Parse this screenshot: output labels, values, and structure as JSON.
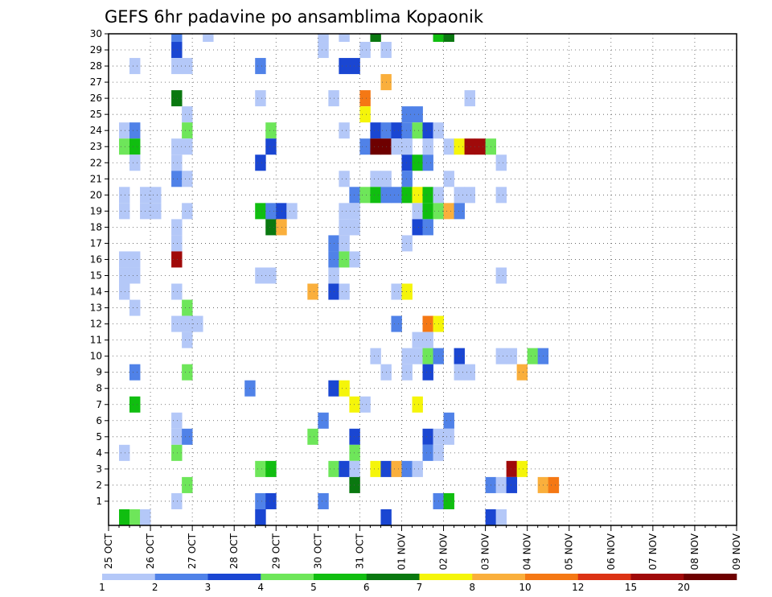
{
  "chart_data": {
    "type": "heatmap",
    "title": "GEFS 6hr padavine po ansamblima Kopaonik",
    "xlabel": "",
    "ylabel": "",
    "y_ticks": [
      1,
      2,
      3,
      4,
      5,
      6,
      7,
      8,
      9,
      10,
      11,
      12,
      13,
      14,
      15,
      16,
      17,
      18,
      19,
      20,
      21,
      22,
      23,
      24,
      25,
      26,
      27,
      28,
      29,
      30
    ],
    "x_ticks": [
      "25 OCT",
      "26 OCT",
      "27 OCT",
      "28 OCT",
      "29 OCT",
      "30 OCT",
      "31 OCT",
      "01 NOV",
      "02 NOV",
      "03 NOV",
      "04 NOV",
      "05 NOV",
      "06 NOV",
      "07 NOV",
      "08 NOV",
      "09 NOV"
    ],
    "x_steps_per_day": 4,
    "grid": true,
    "legend_placement": "bottom",
    "levels": [
      1,
      2,
      3,
      4,
      5,
      6,
      7,
      8,
      10,
      12,
      15,
      20
    ],
    "colors": [
      "#b4c8f8",
      "#5082e8",
      "#1a46d2",
      "#6ee65a",
      "#10be10",
      "#0a7810",
      "#f5f50a",
      "#faaf3c",
      "#f57814",
      "#dc3214",
      "#a00a0a",
      "#6e0000"
    ],
    "note_cells": "each cell = [x step index (6 h steps from 25 OCT 00Z), ensemble member, color index 0-11]",
    "cells": [
      [
        6,
        30,
        1
      ],
      [
        9,
        30,
        0
      ],
      [
        20,
        30,
        0
      ],
      [
        22,
        30,
        0
      ],
      [
        25,
        30,
        5
      ],
      [
        31,
        30,
        4
      ],
      [
        32,
        30,
        5
      ],
      [
        6,
        29,
        2
      ],
      [
        20,
        29,
        0
      ],
      [
        24,
        29,
        0
      ],
      [
        26,
        29,
        0
      ],
      [
        2,
        28,
        0
      ],
      [
        6,
        28,
        0
      ],
      [
        7,
        28,
        0
      ],
      [
        14,
        28,
        1
      ],
      [
        22,
        28,
        2
      ],
      [
        23,
        28,
        2
      ],
      [
        26,
        27,
        7
      ],
      [
        6,
        26,
        5
      ],
      [
        14,
        26,
        0
      ],
      [
        21,
        26,
        0
      ],
      [
        24,
        26,
        8
      ],
      [
        34,
        26,
        0
      ],
      [
        7,
        25,
        0
      ],
      [
        24,
        25,
        6
      ],
      [
        28,
        25,
        1
      ],
      [
        29,
        25,
        1
      ],
      [
        1,
        24,
        0
      ],
      [
        2,
        24,
        1
      ],
      [
        7,
        24,
        3
      ],
      [
        15,
        24,
        3
      ],
      [
        22,
        24,
        0
      ],
      [
        25,
        24,
        2
      ],
      [
        26,
        24,
        1
      ],
      [
        27,
        24,
        2
      ],
      [
        28,
        24,
        1
      ],
      [
        29,
        24,
        3
      ],
      [
        30,
        24,
        2
      ],
      [
        31,
        24,
        0
      ],
      [
        1,
        23,
        3
      ],
      [
        2,
        23,
        4
      ],
      [
        6,
        23,
        0
      ],
      [
        7,
        23,
        0
      ],
      [
        15,
        23,
        2
      ],
      [
        24,
        23,
        1
      ],
      [
        25,
        23,
        11
      ],
      [
        26,
        23,
        11
      ],
      [
        27,
        23,
        0
      ],
      [
        28,
        23,
        0
      ],
      [
        30,
        23,
        0
      ],
      [
        32,
        23,
        0
      ],
      [
        33,
        23,
        6
      ],
      [
        34,
        23,
        10
      ],
      [
        35,
        23,
        10
      ],
      [
        36,
        23,
        3
      ],
      [
        2,
        22,
        0
      ],
      [
        6,
        22,
        0
      ],
      [
        14,
        22,
        2
      ],
      [
        28,
        22,
        2
      ],
      [
        29,
        22,
        4
      ],
      [
        30,
        22,
        1
      ],
      [
        37,
        22,
        0
      ],
      [
        6,
        21,
        1
      ],
      [
        7,
        21,
        0
      ],
      [
        22,
        21,
        0
      ],
      [
        25,
        21,
        0
      ],
      [
        26,
        21,
        0
      ],
      [
        28,
        21,
        1
      ],
      [
        32,
        21,
        0
      ],
      [
        1,
        20,
        0
      ],
      [
        3,
        20,
        0
      ],
      [
        4,
        20,
        0
      ],
      [
        23,
        20,
        1
      ],
      [
        24,
        20,
        3
      ],
      [
        25,
        20,
        4
      ],
      [
        26,
        20,
        1
      ],
      [
        27,
        20,
        1
      ],
      [
        28,
        20,
        4
      ],
      [
        29,
        20,
        6
      ],
      [
        30,
        20,
        4
      ],
      [
        31,
        20,
        0
      ],
      [
        33,
        20,
        0
      ],
      [
        34,
        20,
        0
      ],
      [
        37,
        20,
        0
      ],
      [
        1,
        19,
        0
      ],
      [
        3,
        19,
        0
      ],
      [
        4,
        19,
        0
      ],
      [
        7,
        19,
        0
      ],
      [
        14,
        19,
        4
      ],
      [
        15,
        19,
        1
      ],
      [
        16,
        19,
        2
      ],
      [
        17,
        19,
        0
      ],
      [
        22,
        19,
        0
      ],
      [
        23,
        19,
        0
      ],
      [
        29,
        19,
        0
      ],
      [
        30,
        19,
        4
      ],
      [
        31,
        19,
        3
      ],
      [
        32,
        19,
        7
      ],
      [
        33,
        19,
        1
      ],
      [
        6,
        18,
        0
      ],
      [
        15,
        18,
        5
      ],
      [
        16,
        18,
        7
      ],
      [
        22,
        18,
        0
      ],
      [
        23,
        18,
        0
      ],
      [
        29,
        18,
        2
      ],
      [
        30,
        18,
        1
      ],
      [
        6,
        17,
        0
      ],
      [
        21,
        17,
        1
      ],
      [
        22,
        17,
        0
      ],
      [
        28,
        17,
        0
      ],
      [
        1,
        16,
        0
      ],
      [
        2,
        16,
        0
      ],
      [
        6,
        16,
        10
      ],
      [
        21,
        16,
        1
      ],
      [
        22,
        16,
        3
      ],
      [
        23,
        16,
        0
      ],
      [
        1,
        15,
        0
      ],
      [
        2,
        15,
        0
      ],
      [
        14,
        15,
        0
      ],
      [
        15,
        15,
        0
      ],
      [
        21,
        15,
        0
      ],
      [
        37,
        15,
        0
      ],
      [
        1,
        14,
        0
      ],
      [
        6,
        14,
        0
      ],
      [
        19,
        14,
        7
      ],
      [
        21,
        14,
        2
      ],
      [
        22,
        14,
        0
      ],
      [
        27,
        14,
        0
      ],
      [
        28,
        14,
        6
      ],
      [
        2,
        13,
        0
      ],
      [
        7,
        13,
        3
      ],
      [
        6,
        12,
        0
      ],
      [
        7,
        12,
        0
      ],
      [
        8,
        12,
        0
      ],
      [
        27,
        12,
        1
      ],
      [
        30,
        12,
        8
      ],
      [
        31,
        12,
        6
      ],
      [
        7,
        11,
        0
      ],
      [
        29,
        11,
        0
      ],
      [
        30,
        11,
        0
      ],
      [
        25,
        10,
        0
      ],
      [
        28,
        10,
        0
      ],
      [
        29,
        10,
        0
      ],
      [
        30,
        10,
        3
      ],
      [
        31,
        10,
        1
      ],
      [
        33,
        10,
        2
      ],
      [
        37,
        10,
        0
      ],
      [
        38,
        10,
        0
      ],
      [
        40,
        10,
        3
      ],
      [
        41,
        10,
        1
      ],
      [
        2,
        9,
        1
      ],
      [
        7,
        9,
        3
      ],
      [
        26,
        9,
        0
      ],
      [
        28,
        9,
        0
      ],
      [
        30,
        9,
        2
      ],
      [
        33,
        9,
        0
      ],
      [
        34,
        9,
        0
      ],
      [
        39,
        9,
        7
      ],
      [
        13,
        8,
        1
      ],
      [
        21,
        8,
        2
      ],
      [
        22,
        8,
        6
      ],
      [
        2,
        7,
        4
      ],
      [
        23,
        7,
        6
      ],
      [
        24,
        7,
        0
      ],
      [
        29,
        7,
        6
      ],
      [
        6,
        6,
        0
      ],
      [
        20,
        6,
        1
      ],
      [
        32,
        6,
        1
      ],
      [
        6,
        5,
        0
      ],
      [
        7,
        5,
        1
      ],
      [
        19,
        5,
        3
      ],
      [
        23,
        5,
        2
      ],
      [
        30,
        5,
        2
      ],
      [
        31,
        5,
        0
      ],
      [
        32,
        5,
        0
      ],
      [
        1,
        4,
        0
      ],
      [
        6,
        4,
        3
      ],
      [
        23,
        4,
        3
      ],
      [
        30,
        4,
        1
      ],
      [
        31,
        4,
        0
      ],
      [
        14,
        3,
        3
      ],
      [
        15,
        3,
        4
      ],
      [
        21,
        3,
        3
      ],
      [
        22,
        3,
        2
      ],
      [
        23,
        3,
        0
      ],
      [
        25,
        3,
        6
      ],
      [
        26,
        3,
        2
      ],
      [
        27,
        3,
        7
      ],
      [
        28,
        3,
        1
      ],
      [
        29,
        3,
        0
      ],
      [
        38,
        3,
        10
      ],
      [
        39,
        3,
        6
      ],
      [
        7,
        2,
        3
      ],
      [
        23,
        2,
        5
      ],
      [
        36,
        2,
        1
      ],
      [
        37,
        2,
        0
      ],
      [
        38,
        2,
        2
      ],
      [
        41,
        2,
        7
      ],
      [
        42,
        2,
        8
      ],
      [
        6,
        1,
        0
      ],
      [
        14,
        1,
        1
      ],
      [
        15,
        1,
        2
      ],
      [
        20,
        1,
        1
      ],
      [
        31,
        1,
        1
      ],
      [
        32,
        1,
        4
      ],
      [
        1,
        0,
        4
      ],
      [
        2,
        0,
        3
      ],
      [
        3,
        0,
        0
      ],
      [
        14,
        0,
        2
      ],
      [
        26,
        0,
        2
      ],
      [
        36,
        0,
        2
      ],
      [
        37,
        0,
        0
      ]
    ]
  }
}
